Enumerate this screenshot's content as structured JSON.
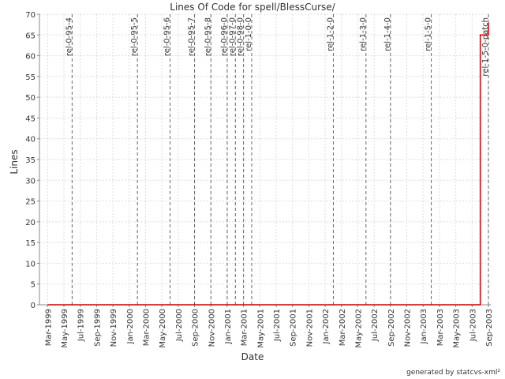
{
  "chart_data": {
    "type": "line",
    "title": "Lines Of Code for spell/BlessCurse/",
    "xlabel": "Date",
    "ylabel": "Lines",
    "footer": "generated by statcvs-xml²",
    "x": [
      "1999-03",
      "2003-08",
      "2003-08",
      "2003-09",
      "2003-09"
    ],
    "series": [
      {
        "color": "#cc0000",
        "values": [
          0,
          0,
          65,
          65,
          68
        ]
      }
    ],
    "markers": [
      {
        "label": "rel-0-95-4",
        "x": "1999-06"
      },
      {
        "label": "rel-0-95-5",
        "x": "2000-02"
      },
      {
        "label": "rel-0-95-6",
        "x": "2000-06"
      },
      {
        "label": "rel-0-95-7",
        "x": "2000-09"
      },
      {
        "label": "rel-0-95-8",
        "x": "2000-11"
      },
      {
        "label": "rel-0-96-0",
        "x": "2001-01"
      },
      {
        "label": "rel-0-97-0",
        "x": "2001-02"
      },
      {
        "label": "rel-0-98-0",
        "x": "2001-03"
      },
      {
        "label": "rel-1-0-0",
        "x": "2001-04"
      },
      {
        "label": "rel-1-2-0",
        "x": "2002-02"
      },
      {
        "label": "rel-1-3-0",
        "x": "2002-06"
      },
      {
        "label": "rel-1-4-0",
        "x": "2002-09"
      },
      {
        "label": "rel-1-5-0",
        "x": "2003-02"
      },
      {
        "label": "rel-1-5-0-patch",
        "x": "2003-09"
      }
    ],
    "xlim": [
      "1999-02",
      "2003-09"
    ],
    "xticks": [
      {
        "value": "1999-03",
        "label": "Mar-1999"
      },
      {
        "value": "1999-05",
        "label": "May-1999"
      },
      {
        "value": "1999-07",
        "label": "Jul-1999"
      },
      {
        "value": "1999-09",
        "label": "Sep-1999"
      },
      {
        "value": "1999-11",
        "label": "Nov-1999"
      },
      {
        "value": "2000-01",
        "label": "Jan-2000"
      },
      {
        "value": "2000-03",
        "label": "Mar-2000"
      },
      {
        "value": "2000-05",
        "label": "May-2000"
      },
      {
        "value": "2000-07",
        "label": "Jul-2000"
      },
      {
        "value": "2000-09",
        "label": "Sep-2000"
      },
      {
        "value": "2000-11",
        "label": "Nov-2000"
      },
      {
        "value": "2001-01",
        "label": "Jan-2001"
      },
      {
        "value": "2001-03",
        "label": "Mar-2001"
      },
      {
        "value": "2001-05",
        "label": "May-2001"
      },
      {
        "value": "2001-07",
        "label": "Jul-2001"
      },
      {
        "value": "2001-09",
        "label": "Sep-2001"
      },
      {
        "value": "2001-11",
        "label": "Nov-2001"
      },
      {
        "value": "2002-01",
        "label": "Jan-2002"
      },
      {
        "value": "2002-03",
        "label": "Mar-2002"
      },
      {
        "value": "2002-05",
        "label": "May-2002"
      },
      {
        "value": "2002-07",
        "label": "Jul-2002"
      },
      {
        "value": "2002-09",
        "label": "Sep-2002"
      },
      {
        "value": "2002-11",
        "label": "Nov-2002"
      },
      {
        "value": "2003-01",
        "label": "Jan-2003"
      },
      {
        "value": "2003-03",
        "label": "Mar-2003"
      },
      {
        "value": "2003-05",
        "label": "May-2003"
      },
      {
        "value": "2003-07",
        "label": "Jul-2003"
      },
      {
        "value": "2003-09",
        "label": "Sep-2003"
      }
    ],
    "ylim": [
      0,
      70
    ],
    "yticks": [
      0,
      5,
      10,
      15,
      20,
      25,
      30,
      35,
      40,
      45,
      50,
      55,
      60,
      65,
      70
    ],
    "grid": true
  }
}
